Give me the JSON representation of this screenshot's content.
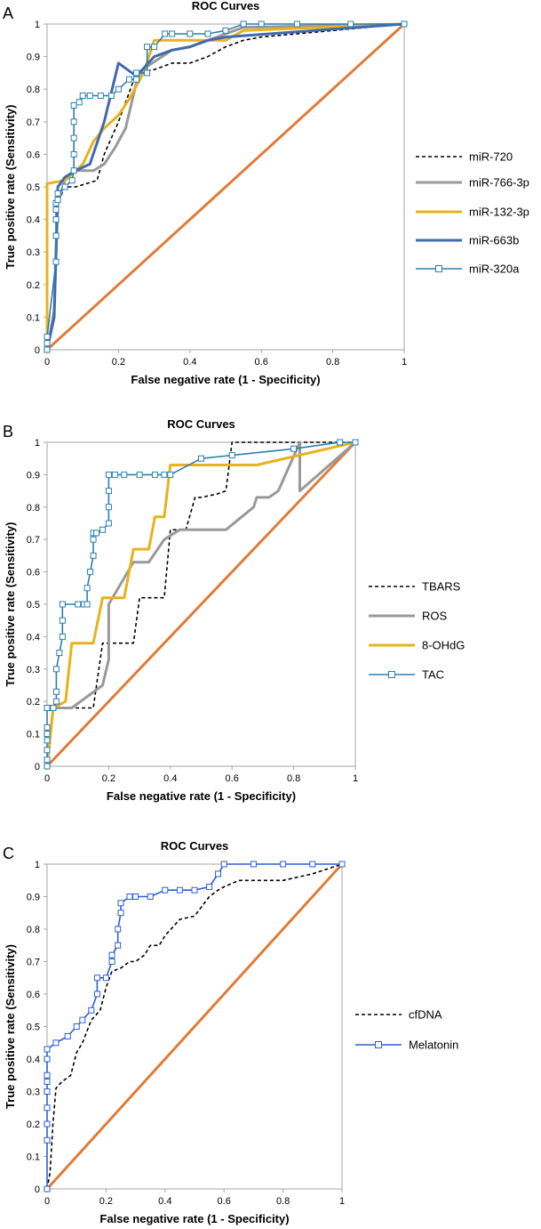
{
  "chart_data": [
    {
      "type": "line",
      "panel_label": "A",
      "title": "ROC Curves",
      "xlabel": "False negative rate (1 - Specificity)",
      "ylabel": "True positive rate (Sensitivity)",
      "xlim": [
        0,
        1
      ],
      "ylim": [
        0,
        1
      ],
      "xticks": [
        "0",
        "0.2",
        "0.4",
        "0.6",
        "0.8",
        "1"
      ],
      "yticks": [
        "0",
        "0.1",
        "0.2",
        "0.3",
        "0.4",
        "0.5",
        "0.6",
        "0.7",
        "0.8",
        "0.9",
        "1"
      ],
      "legend_position": "right",
      "reference_line": {
        "color": "#E07B39",
        "from": [
          0,
          0
        ],
        "to": [
          1,
          1
        ]
      },
      "series": [
        {
          "name": "miR-720",
          "color": "#000000",
          "style": "dashed",
          "marker": false,
          "x": [
            0,
            0.02,
            0.03,
            0.05,
            0.08,
            0.14,
            0.16,
            0.2,
            0.25,
            0.3,
            0.35,
            0.4,
            0.45,
            0.5,
            0.55,
            0.6,
            0.8,
            1
          ],
          "y": [
            0,
            0.1,
            0.45,
            0.5,
            0.5,
            0.52,
            0.6,
            0.7,
            0.85,
            0.86,
            0.88,
            0.88,
            0.9,
            0.93,
            0.95,
            0.96,
            0.98,
            1
          ]
        },
        {
          "name": "miR-766-3p",
          "color": "#999999",
          "style": "solid",
          "marker": false,
          "x": [
            0,
            0.02,
            0.03,
            0.05,
            0.08,
            0.13,
            0.16,
            0.19,
            0.22,
            0.25,
            0.28,
            0.35,
            0.4,
            0.45,
            0.5,
            0.55,
            1
          ],
          "y": [
            0,
            0.12,
            0.45,
            0.52,
            0.55,
            0.55,
            0.57,
            0.62,
            0.68,
            0.82,
            0.87,
            0.92,
            0.93,
            0.95,
            0.97,
            0.99,
            1
          ]
        },
        {
          "name": "miR-132-3p",
          "color": "#E8B21B",
          "style": "solid",
          "marker": false,
          "x": [
            0,
            0,
            0.05,
            0.1,
            0.13,
            0.16,
            0.2,
            0.23,
            0.27,
            0.3,
            0.35,
            0.45,
            0.5,
            0.55,
            1
          ],
          "y": [
            0,
            0.51,
            0.52,
            0.57,
            0.64,
            0.68,
            0.72,
            0.77,
            0.85,
            0.95,
            0.95,
            0.95,
            0.95,
            0.98,
            1
          ]
        },
        {
          "name": "miR-663b",
          "color": "#4169B0",
          "style": "solid",
          "marker": false,
          "x": [
            0,
            0.02,
            0.03,
            0.05,
            0.08,
            0.12,
            0.16,
            0.2,
            0.25,
            0.3,
            0.35,
            0.4,
            0.45,
            0.5,
            1
          ],
          "y": [
            0,
            0.1,
            0.5,
            0.53,
            0.55,
            0.57,
            0.7,
            0.88,
            0.84,
            0.9,
            0.92,
            0.93,
            0.95,
            0.96,
            1
          ]
        },
        {
          "name": "miR-320a",
          "color": "#2B7FB0",
          "style": "solid",
          "marker": true,
          "x": [
            0,
            0,
            0,
            0.025,
            0.025,
            0.025,
            0.025,
            0.025,
            0.03,
            0.03,
            0.05,
            0.07,
            0.075,
            0.075,
            0.075,
            0.075,
            0.075,
            0.09,
            0.1,
            0.12,
            0.15,
            0.18,
            0.2,
            0.23,
            0.25,
            0.25,
            0.28,
            0.28,
            0.3,
            0.33,
            0.35,
            0.4,
            0.45,
            0.5,
            0.55,
            0.6,
            0.7,
            0.85,
            1
          ],
          "y": [
            0,
            0.02,
            0.04,
            0.27,
            0.35,
            0.4,
            0.43,
            0.45,
            0.46,
            0.48,
            0.5,
            0.52,
            0.55,
            0.6,
            0.65,
            0.7,
            0.75,
            0.76,
            0.78,
            0.78,
            0.78,
            0.78,
            0.8,
            0.83,
            0.83,
            0.85,
            0.85,
            0.93,
            0.93,
            0.97,
            0.97,
            0.97,
            0.97,
            0.98,
            1,
            1,
            1,
            1,
            1
          ]
        }
      ]
    },
    {
      "type": "line",
      "panel_label": "B",
      "title": "ROC Curves",
      "xlabel": "False negative rate (1 - Specificity)",
      "ylabel": "True positive rate (Sensitivity)",
      "xlim": [
        0,
        1
      ],
      "ylim": [
        0,
        1
      ],
      "xticks": [
        "0",
        "0.2",
        "0.4",
        "0.6",
        "0.8",
        "1"
      ],
      "yticks": [
        "0",
        "0.1",
        "0.2",
        "0.3",
        "0.4",
        "0.5",
        "0.6",
        "0.7",
        "0.8",
        "0.9",
        "1"
      ],
      "legend_position": "right",
      "reference_line": {
        "color": "#E07B39",
        "from": [
          0,
          0
        ],
        "to": [
          1,
          1
        ]
      },
      "series": [
        {
          "name": "TBARS",
          "color": "#000000",
          "style": "dashed",
          "marker": false,
          "x": [
            0,
            0.02,
            0.08,
            0.15,
            0.18,
            0.2,
            0.28,
            0.3,
            0.35,
            0.38,
            0.4,
            0.45,
            0.48,
            0.5,
            0.55,
            0.58,
            0.6,
            1
          ],
          "y": [
            0,
            0.18,
            0.18,
            0.18,
            0.38,
            0.38,
            0.38,
            0.52,
            0.52,
            0.52,
            0.73,
            0.73,
            0.83,
            0.83,
            0.84,
            0.85,
            1,
            1
          ]
        },
        {
          "name": "ROS",
          "color": "#999999",
          "style": "solid",
          "marker": false,
          "x": [
            0,
            0.02,
            0.08,
            0.18,
            0.2,
            0.2,
            0.28,
            0.33,
            0.38,
            0.43,
            0.58,
            0.67,
            0.68,
            0.72,
            0.75,
            0.82,
            0.82,
            1
          ],
          "y": [
            0,
            0.18,
            0.18,
            0.25,
            0.33,
            0.5,
            0.63,
            0.63,
            0.7,
            0.73,
            0.73,
            0.8,
            0.83,
            0.83,
            0.85,
            1,
            0.85,
            1
          ]
        },
        {
          "name": "8-OHdG",
          "color": "#E8B21B",
          "style": "solid",
          "marker": false,
          "x": [
            0,
            0.02,
            0.06,
            0.08,
            0.15,
            0.18,
            0.2,
            0.25,
            0.28,
            0.33,
            0.35,
            0.38,
            0.4,
            0.45,
            0.68,
            1
          ],
          "y": [
            0,
            0.18,
            0.2,
            0.38,
            0.38,
            0.52,
            0.52,
            0.52,
            0.67,
            0.67,
            0.77,
            0.77,
            0.93,
            0.93,
            0.93,
            1
          ]
        },
        {
          "name": "TAC",
          "color": "#2B7FB0",
          "style": "solid",
          "marker": true,
          "x": [
            0,
            0,
            0,
            0,
            0,
            0,
            0,
            0.02,
            0.03,
            0.03,
            0.03,
            0.04,
            0.05,
            0.05,
            0.05,
            0.1,
            0.12,
            0.13,
            0.13,
            0.14,
            0.15,
            0.15,
            0.15,
            0.16,
            0.18,
            0.2,
            0.2,
            0.2,
            0.2,
            0.22,
            0.25,
            0.3,
            0.35,
            0.38,
            0.4,
            0.5,
            0.6,
            0.8,
            0.95,
            1
          ],
          "y": [
            0,
            0.02,
            0.05,
            0.08,
            0.1,
            0.12,
            0.18,
            0.18,
            0.2,
            0.23,
            0.3,
            0.35,
            0.4,
            0.45,
            0.5,
            0.5,
            0.5,
            0.5,
            0.55,
            0.6,
            0.65,
            0.7,
            0.72,
            0.72,
            0.73,
            0.75,
            0.8,
            0.85,
            0.9,
            0.9,
            0.9,
            0.9,
            0.9,
            0.9,
            0.9,
            0.95,
            0.96,
            0.98,
            1,
            1
          ]
        }
      ]
    },
    {
      "type": "line",
      "panel_label": "C",
      "title": "ROC Curves",
      "xlabel": "False negative rate (1 - Specificity)",
      "ylabel": "True positive rate (Sensitivity)",
      "xlim": [
        0,
        1
      ],
      "ylim": [
        0,
        1
      ],
      "xticks": [
        "0",
        "0.2",
        "0.4",
        "0.6",
        "0.8",
        "1"
      ],
      "yticks": [
        "0",
        "0.1",
        "0.2",
        "0.3",
        "0.4",
        "0.5",
        "0.6",
        "0.7",
        "0.8",
        "0.9",
        "1"
      ],
      "legend_position": "right",
      "reference_line": {
        "color": "#E07B39",
        "from": [
          0,
          0
        ],
        "to": [
          1,
          1
        ]
      },
      "series": [
        {
          "name": "cfDNA",
          "color": "#000000",
          "style": "dashed",
          "marker": false,
          "x": [
            0,
            0.01,
            0.02,
            0.03,
            0.05,
            0.08,
            0.1,
            0.12,
            0.15,
            0.18,
            0.2,
            0.22,
            0.25,
            0.28,
            0.3,
            0.33,
            0.35,
            0.38,
            0.4,
            0.45,
            0.5,
            0.55,
            0.58,
            0.6,
            0.65,
            0.7,
            0.8,
            0.9,
            1
          ],
          "y": [
            0,
            0.05,
            0.2,
            0.31,
            0.33,
            0.35,
            0.42,
            0.45,
            0.52,
            0.55,
            0.62,
            0.67,
            0.68,
            0.7,
            0.7,
            0.72,
            0.75,
            0.75,
            0.78,
            0.83,
            0.84,
            0.9,
            0.92,
            0.93,
            0.95,
            0.95,
            0.95,
            0.97,
            1
          ]
        },
        {
          "name": "Melatonin",
          "color": "#2E5FD0",
          "style": "solid",
          "marker": true,
          "x": [
            0,
            0,
            0,
            0,
            0,
            0,
            0,
            0,
            0,
            0.03,
            0.07,
            0.1,
            0.12,
            0.15,
            0.17,
            0.17,
            0.2,
            0.22,
            0.22,
            0.24,
            0.24,
            0.25,
            0.25,
            0.28,
            0.3,
            0.35,
            0.4,
            0.45,
            0.5,
            0.55,
            0.58,
            0.6,
            0.7,
            0.8,
            0.9,
            1
          ],
          "y": [
            0,
            0.15,
            0.2,
            0.25,
            0.3,
            0.33,
            0.35,
            0.4,
            0.43,
            0.45,
            0.47,
            0.5,
            0.52,
            0.55,
            0.6,
            0.65,
            0.65,
            0.7,
            0.72,
            0.75,
            0.8,
            0.85,
            0.88,
            0.9,
            0.9,
            0.9,
            0.92,
            0.92,
            0.92,
            0.93,
            0.97,
            1,
            1,
            1,
            1,
            1
          ]
        }
      ]
    }
  ]
}
